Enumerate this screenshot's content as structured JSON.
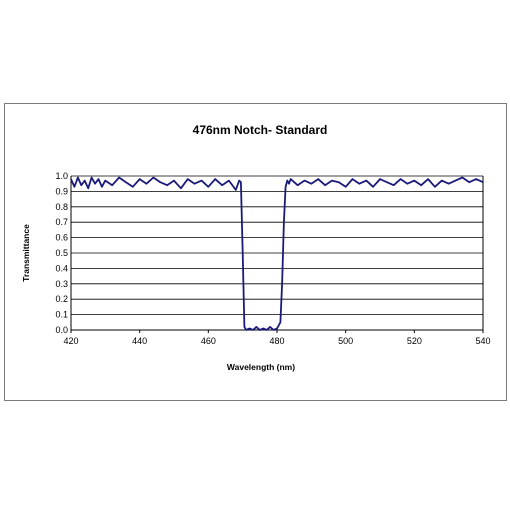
{
  "chart_data": {
    "type": "line",
    "title": "476nm Notch- Standard",
    "xlabel": "Wavelength (nm)",
    "ylabel": "Transmittance",
    "xlim": [
      420,
      540
    ],
    "ylim": [
      0,
      1.0
    ],
    "x_ticks": [
      "420",
      "440",
      "460",
      "480",
      "500",
      "520",
      "540"
    ],
    "y_ticks": [
      "0.0",
      "0.1",
      "0.2",
      "0.3",
      "0.4",
      "0.5",
      "0.6",
      "0.7",
      "0.8",
      "0.9",
      "1.0"
    ],
    "grid": "horizontal",
    "legend": "none",
    "line_color": "#1a1a7a",
    "series": [
      {
        "x": [
          420,
          421,
          422,
          423,
          424,
          425,
          426,
          427,
          428,
          429,
          430,
          432,
          434,
          436,
          438,
          440,
          442,
          444,
          446,
          448,
          450,
          452,
          454,
          456,
          458,
          460,
          462,
          464,
          466,
          468,
          469,
          469.5,
          470,
          470.5,
          471,
          472,
          473,
          474,
          475,
          476,
          477,
          478,
          479,
          480,
          481,
          481.5,
          482,
          482.5,
          483,
          483.5,
          484,
          486,
          488,
          490,
          492,
          494,
          496,
          498,
          500,
          502,
          504,
          506,
          508,
          510,
          512,
          514,
          516,
          518,
          520,
          522,
          524,
          526,
          528,
          530,
          532,
          534,
          536,
          538,
          540
        ],
        "y": [
          0.98,
          0.93,
          0.99,
          0.94,
          0.97,
          0.92,
          0.99,
          0.95,
          0.98,
          0.93,
          0.97,
          0.94,
          0.99,
          0.96,
          0.93,
          0.98,
          0.95,
          0.99,
          0.96,
          0.94,
          0.97,
          0.92,
          0.98,
          0.95,
          0.97,
          0.93,
          0.98,
          0.94,
          0.97,
          0.91,
          0.97,
          0.96,
          0.5,
          0.02,
          0.0,
          0.01,
          0.0,
          0.02,
          0.0,
          0.01,
          0.0,
          0.02,
          0.0,
          0.01,
          0.05,
          0.3,
          0.7,
          0.93,
          0.97,
          0.95,
          0.98,
          0.94,
          0.97,
          0.95,
          0.98,
          0.94,
          0.97,
          0.96,
          0.93,
          0.98,
          0.95,
          0.97,
          0.93,
          0.98,
          0.96,
          0.94,
          0.98,
          0.95,
          0.97,
          0.94,
          0.98,
          0.93,
          0.97,
          0.95,
          0.97,
          0.99,
          0.96,
          0.98,
          0.96
        ]
      }
    ]
  }
}
